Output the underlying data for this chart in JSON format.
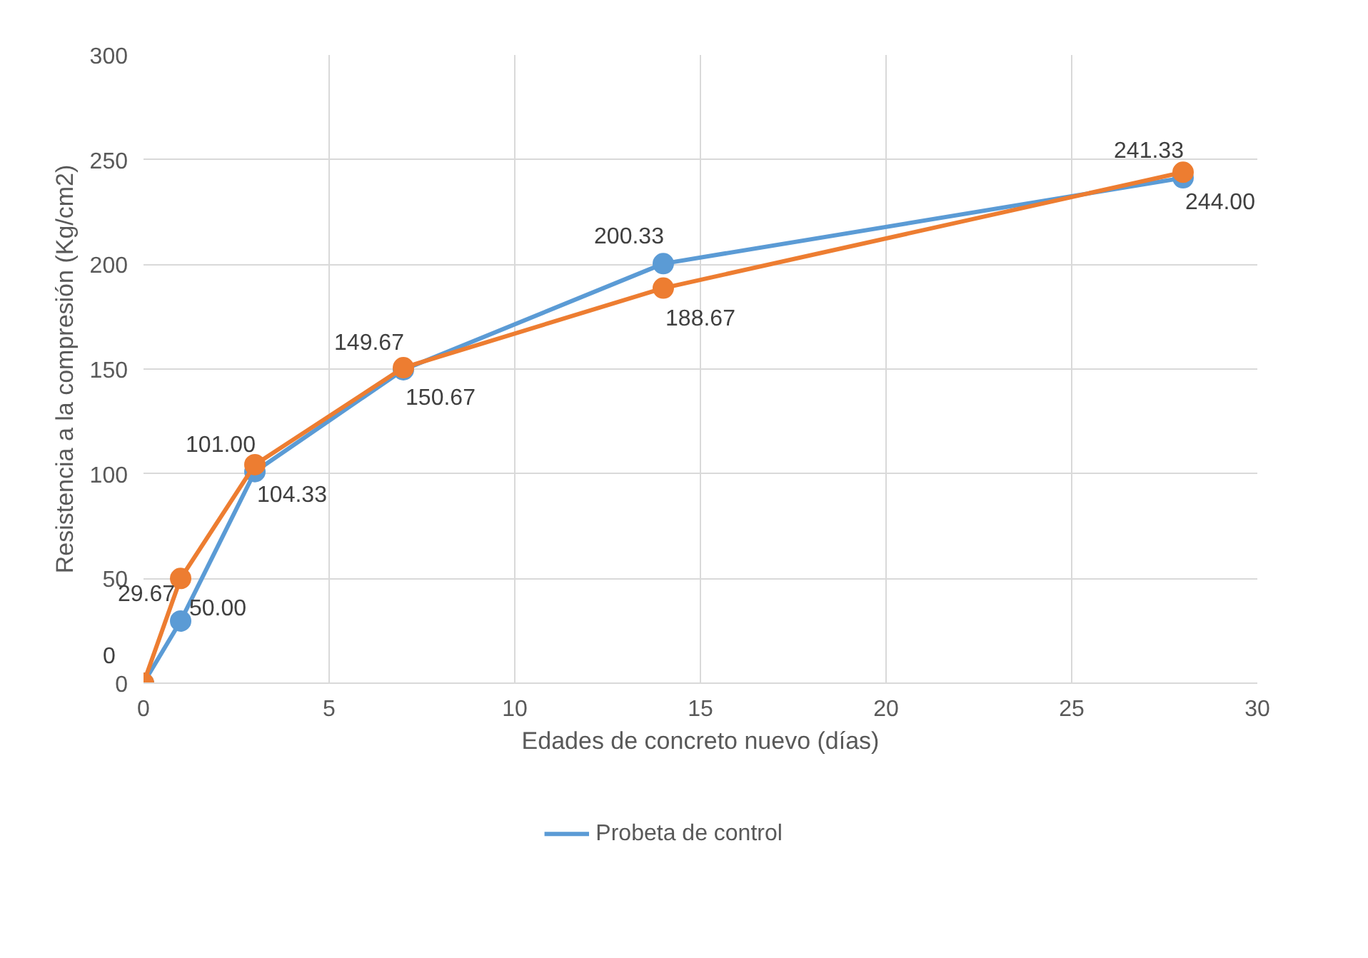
{
  "chart_data": {
    "type": "line",
    "xlabel": "Edades de concreto nuevo (días)",
    "ylabel": "Resistencia a la compresión (Kg/cm2)",
    "x": [
      0,
      1,
      3,
      7,
      14,
      28
    ],
    "series": [
      {
        "name": "Probeta de control",
        "color": "#5b9bd5",
        "values": [
          0,
          29.67,
          101.0,
          149.67,
          200.33,
          241.33
        ],
        "value_labels": [
          "0",
          "29.67",
          "101.00",
          "149.67",
          "200.33",
          "241.33"
        ]
      },
      {
        "color": "#ed7d31",
        "values": [
          0,
          50.0,
          104.33,
          150.67,
          188.67,
          244.0
        ],
        "value_labels": [
          null,
          "50.00",
          "104.33",
          "150.67",
          "188.67",
          "244.00"
        ]
      }
    ],
    "xlim": [
      0,
      30
    ],
    "xticks": [
      0,
      5,
      10,
      15,
      20,
      25,
      30
    ],
    "ylim": [
      0,
      300
    ],
    "yticks": [
      0,
      50,
      100,
      150,
      200,
      250,
      300
    ],
    "grid": true,
    "legend": "bottom",
    "marker": "circle",
    "line_style": "solid"
  }
}
